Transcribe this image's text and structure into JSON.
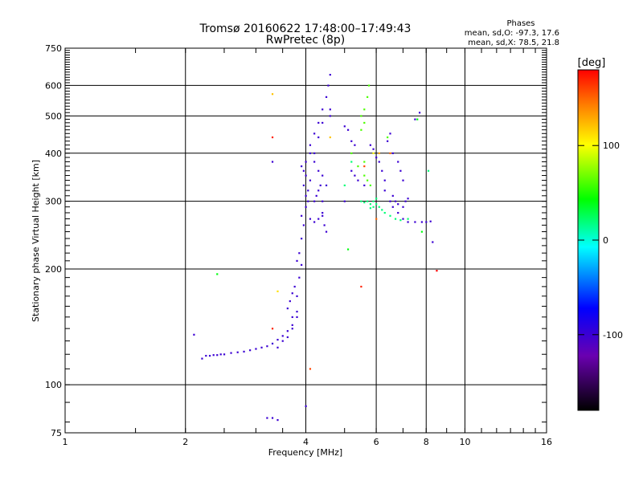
{
  "title": {
    "line1": "Tromsø 20160622 17:48:00–17:49:43",
    "line2": "RwPretec (8p)"
  },
  "stats": {
    "heading": "Phases",
    "o_line": "mean, sd,O: -97.3, 17.6",
    "x_line": "mean, sd,X:  78.5, 21.8"
  },
  "colorbar": {
    "title": "[deg]",
    "range": [
      -180,
      180
    ],
    "tick_labels": [
      "100",
      "0",
      "-100"
    ],
    "tick_values": [
      100,
      0,
      -100
    ]
  },
  "chart_data": {
    "type": "scatter",
    "xlabel": "Frequency [MHz]",
    "ylabel": "Stationary phase Virtual Height [km]",
    "xscale": "log2",
    "yscale": "log",
    "xlim": [
      1,
      16
    ],
    "ylim": [
      75,
      750
    ],
    "xticks": [
      1,
      2,
      4,
      6,
      8,
      10,
      16
    ],
    "xtick_labels": [
      "1",
      "2",
      "4",
      "6",
      "8",
      "10",
      "16"
    ],
    "yticks": [
      75,
      100,
      200,
      300,
      400,
      500,
      600,
      750
    ],
    "ytick_labels": [
      "75",
      "100",
      "200",
      "300",
      "400",
      "500",
      "600",
      "750"
    ],
    "xgrid": [
      2,
      4,
      6,
      8,
      10
    ],
    "ygrid": [
      100,
      200,
      300,
      400,
      500,
      600
    ],
    "grid": true,
    "color_by": "phase_deg",
    "series": [
      {
        "values": [
          [
            2.1,
            135,
            -100
          ],
          [
            2.2,
            117,
            -100
          ],
          [
            2.25,
            119,
            -100
          ],
          [
            2.3,
            119,
            -100
          ],
          [
            2.35,
            119.5,
            -100
          ],
          [
            2.4,
            119.5,
            -100
          ],
          [
            2.45,
            120,
            -100
          ],
          [
            2.5,
            120,
            -100
          ],
          [
            2.6,
            121,
            -100
          ],
          [
            2.7,
            121.5,
            -100
          ],
          [
            2.8,
            122,
            -100
          ],
          [
            2.9,
            123,
            -100
          ],
          [
            3.0,
            124,
            -100
          ],
          [
            3.1,
            125,
            -100
          ],
          [
            3.2,
            126,
            -100
          ],
          [
            3.3,
            128,
            -100
          ],
          [
            3.4,
            131,
            -100
          ],
          [
            3.5,
            134,
            -100
          ],
          [
            3.6,
            138,
            -100
          ],
          [
            3.7,
            143,
            -100
          ],
          [
            3.8,
            150,
            -100
          ],
          [
            3.4,
            125,
            -100
          ],
          [
            3.5,
            130,
            -100
          ],
          [
            3.6,
            133,
            -100
          ],
          [
            3.7,
            140,
            -100
          ],
          [
            3.8,
            155,
            -100
          ],
          [
            3.6,
            158,
            -100
          ],
          [
            3.65,
            165,
            -100
          ],
          [
            3.7,
            173,
            -100
          ],
          [
            3.75,
            180,
            -100
          ],
          [
            3.7,
            150,
            -100
          ],
          [
            3.8,
            170,
            -100
          ],
          [
            3.85,
            190,
            -100
          ],
          [
            3.9,
            205,
            -100
          ],
          [
            3.8,
            210,
            -100
          ],
          [
            3.85,
            220,
            -100
          ],
          [
            3.9,
            240,
            -100
          ],
          [
            3.95,
            260,
            -100
          ],
          [
            3.9,
            275,
            -100
          ],
          [
            4.0,
            290,
            -100
          ],
          [
            4.0,
            310,
            -100
          ],
          [
            3.95,
            330,
            -100
          ],
          [
            4.0,
            350,
            -100
          ],
          [
            3.9,
            370,
            -100
          ],
          [
            4.05,
            300,
            -100
          ],
          [
            4.05,
            320,
            -100
          ],
          [
            4.1,
            340,
            -100
          ],
          [
            3.95,
            360,
            -100
          ],
          [
            4.0,
            380,
            -100
          ],
          [
            4.1,
            400,
            -100
          ],
          [
            4.1,
            420,
            -100
          ],
          [
            4.2,
            450,
            -100
          ],
          [
            4.3,
            480,
            -100
          ],
          [
            4.4,
            520,
            -100
          ],
          [
            4.5,
            560,
            -100
          ],
          [
            4.55,
            600,
            -100
          ],
          [
            4.6,
            640,
            -100
          ],
          [
            4.4,
            480,
            -100
          ],
          [
            4.3,
            440,
            -100
          ],
          [
            4.2,
            400,
            -100
          ],
          [
            4.2,
            380,
            -100
          ],
          [
            4.3,
            360,
            -100
          ],
          [
            4.4,
            350,
            -100
          ],
          [
            4.5,
            330,
            -100
          ],
          [
            4.4,
            300,
            -100
          ],
          [
            4.4,
            280,
            -100
          ],
          [
            4.45,
            260,
            -100
          ],
          [
            4.5,
            250,
            -100
          ],
          [
            4.6,
            500,
            -100
          ],
          [
            4.6,
            520,
            -100
          ],
          [
            4.2,
            300,
            -100
          ],
          [
            4.25,
            310,
            -100
          ],
          [
            4.3,
            320,
            -100
          ],
          [
            4.35,
            330,
            -100
          ],
          [
            4.1,
            270,
            -100
          ],
          [
            4.2,
            265,
            -100
          ],
          [
            4.3,
            270,
            -100
          ],
          [
            4.4,
            275,
            -100
          ],
          [
            3.3,
            380,
            -100
          ],
          [
            3.2,
            82,
            -100
          ],
          [
            3.3,
            82,
            -100
          ],
          [
            3.4,
            81,
            -100
          ],
          [
            4.0,
            88,
            -100
          ],
          [
            5.2,
            430,
            -100
          ],
          [
            5.3,
            420,
            -100
          ],
          [
            5.2,
            360,
            -100
          ],
          [
            5.3,
            350,
            -100
          ],
          [
            5.4,
            340,
            -100
          ],
          [
            5.6,
            330,
            -100
          ],
          [
            5.8,
            420,
            -100
          ],
          [
            5.9,
            410,
            -100
          ],
          [
            6.0,
            390,
            -100
          ],
          [
            6.1,
            380,
            -100
          ],
          [
            6.2,
            360,
            -100
          ],
          [
            6.3,
            340,
            -100
          ],
          [
            6.3,
            320,
            -100
          ],
          [
            6.5,
            300,
            -100
          ],
          [
            6.6,
            290,
            -100
          ],
          [
            6.8,
            280,
            -100
          ],
          [
            7.0,
            270,
            -100
          ],
          [
            7.2,
            265,
            -100
          ],
          [
            7.5,
            265,
            -100
          ],
          [
            7.8,
            265,
            -100
          ],
          [
            8.0,
            265,
            -100
          ],
          [
            8.2,
            266,
            -100
          ],
          [
            6.6,
            310,
            -100
          ],
          [
            6.7,
            300,
            -100
          ],
          [
            6.8,
            295,
            -100
          ],
          [
            7.0,
            290,
            -100
          ],
          [
            7.1,
            300,
            -100
          ],
          [
            7.2,
            305,
            -100
          ],
          [
            6.4,
            430,
            -100
          ],
          [
            6.5,
            450,
            -100
          ],
          [
            6.6,
            400,
            -100
          ],
          [
            6.8,
            380,
            -100
          ],
          [
            6.9,
            360,
            -100
          ],
          [
            7.0,
            340,
            -100
          ],
          [
            7.5,
            490,
            -100
          ],
          [
            7.7,
            510,
            -100
          ],
          [
            8.3,
            235,
            -100
          ],
          [
            5.0,
            470,
            -100
          ],
          [
            5.1,
            460,
            -100
          ],
          [
            5.0,
            300,
            -100
          ],
          [
            5.5,
            500,
            60
          ],
          [
            5.6,
            520,
            60
          ],
          [
            5.7,
            560,
            60
          ],
          [
            5.75,
            600,
            60
          ],
          [
            5.6,
            480,
            60
          ],
          [
            5.5,
            460,
            60
          ],
          [
            5.6,
            380,
            60
          ],
          [
            5.4,
            370,
            60
          ],
          [
            5.2,
            400,
            60
          ],
          [
            5.6,
            350,
            60
          ],
          [
            5.7,
            340,
            60
          ],
          [
            5.8,
            330,
            60
          ],
          [
            6.4,
            440,
            60
          ],
          [
            5.7,
            300,
            20
          ],
          [
            5.8,
            295,
            20
          ],
          [
            5.9,
            290,
            20
          ],
          [
            6.0,
            295,
            20
          ],
          [
            6.1,
            290,
            20
          ],
          [
            6.2,
            285,
            20
          ],
          [
            6.3,
            280,
            20
          ],
          [
            6.5,
            275,
            20
          ],
          [
            6.7,
            270,
            20
          ],
          [
            6.9,
            268,
            20
          ],
          [
            7.2,
            270,
            20
          ],
          [
            8.1,
            360,
            20
          ],
          [
            5.5,
            300,
            20
          ],
          [
            5.6,
            298,
            20
          ],
          [
            5.9,
            300,
            20
          ],
          [
            5.8,
            288,
            20
          ],
          [
            6.0,
            305,
            20
          ],
          [
            5.2,
            380,
            20
          ],
          [
            5.0,
            330,
            20
          ],
          [
            2.4,
            194,
            40
          ],
          [
            5.1,
            225,
            40
          ],
          [
            7.8,
            250,
            40
          ],
          [
            7.6,
            490,
            40
          ],
          [
            3.4,
            175,
            110
          ],
          [
            3.3,
            570,
            120
          ],
          [
            4.6,
            440,
            120
          ],
          [
            5.9,
            400,
            100
          ],
          [
            6.1,
            400,
            130
          ],
          [
            3.3,
            440,
            170
          ],
          [
            3.3,
            140,
            170
          ],
          [
            5.5,
            180,
            170
          ],
          [
            5.6,
            370,
            160
          ],
          [
            6.5,
            400,
            150
          ],
          [
            6.0,
            270,
            150
          ],
          [
            8.5,
            198,
            180
          ],
          [
            4.1,
            110,
            160
          ]
        ]
      }
    ]
  }
}
